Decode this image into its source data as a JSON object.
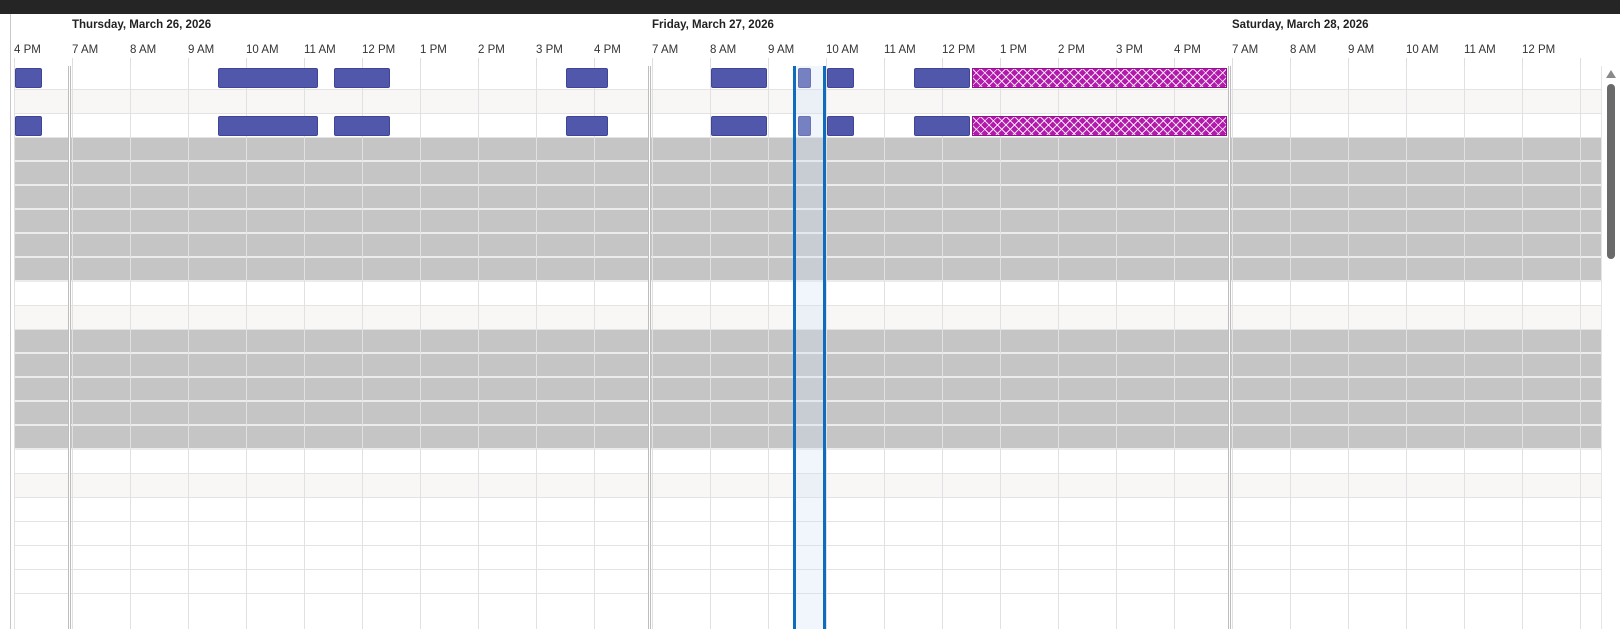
{
  "scheduler": {
    "days": [
      {
        "label": "Thursday, March 26, 2026"
      },
      {
        "label": "Friday, March 27, 2026"
      },
      {
        "label": "Saturday, March 28, 2026"
      }
    ],
    "hour_labels": [
      [
        "4 PM"
      ],
      [
        "7 AM",
        "8 AM",
        "9 AM",
        "10 AM",
        "11 AM",
        "12 PM",
        "1 PM",
        "2 PM",
        "3 PM",
        "4 PM"
      ],
      [
        "7 AM",
        "8 AM",
        "9 AM",
        "10 AM",
        "11 AM",
        "12 PM",
        "1 PM",
        "2 PM",
        "3 PM",
        "4 PM"
      ],
      [
        "7 AM",
        "8 AM",
        "9 AM",
        "10 AM",
        "11 AM",
        "12 PM"
      ]
    ],
    "row_types": [
      "plain",
      "alt",
      "plain",
      "off",
      "off",
      "off",
      "off",
      "off",
      "off",
      "plain",
      "alt",
      "off",
      "off",
      "off",
      "off",
      "off",
      "plain",
      "alt",
      "plain",
      "plain",
      "plain",
      "plain"
    ],
    "bookings": [
      {
        "row": 0,
        "day": "Thursday, March 26, 2026",
        "start": "4:00 PM",
        "end": "4:30 PM",
        "style": "booking"
      },
      {
        "row": 0,
        "day": "Thursday, March 26, 2026",
        "start": "9:30 AM",
        "end": "11:15 AM",
        "style": "booking"
      },
      {
        "row": 0,
        "day": "Thursday, March 26, 2026",
        "start": "11:30 AM",
        "end": "12:30 PM",
        "style": "booking"
      },
      {
        "row": 0,
        "day": "Thursday, March 26, 2026",
        "start": "3:30 PM",
        "end": "4:15 PM",
        "style": "booking"
      },
      {
        "row": 0,
        "day": "Friday, March 27, 2026",
        "start": "8:00 AM",
        "end": "9:00 AM",
        "style": "booking"
      },
      {
        "row": 0,
        "day": "Friday, March 27, 2026",
        "start": "9:30 AM",
        "end": "9:45 AM",
        "style": "booking"
      },
      {
        "row": 0,
        "day": "Friday, March 27, 2026",
        "start": "10:00 AM",
        "end": "10:30 AM",
        "style": "booking"
      },
      {
        "row": 0,
        "day": "Friday, March 27, 2026",
        "start": "11:30 AM",
        "end": "12:30 PM",
        "style": "booking"
      },
      {
        "row": 0,
        "day": "Friday, March 27, 2026",
        "start": "12:30 PM",
        "end": "5:00 PM",
        "style": "hatch"
      },
      {
        "row": 2,
        "day": "Thursday, March 26, 2026",
        "start": "4:00 PM",
        "end": "4:30 PM",
        "style": "booking"
      },
      {
        "row": 2,
        "day": "Thursday, March 26, 2026",
        "start": "9:30 AM",
        "end": "11:15 AM",
        "style": "booking"
      },
      {
        "row": 2,
        "day": "Thursday, March 26, 2026",
        "start": "11:30 AM",
        "end": "12:30 PM",
        "style": "booking"
      },
      {
        "row": 2,
        "day": "Thursday, March 26, 2026",
        "start": "3:30 PM",
        "end": "4:15 PM",
        "style": "booking"
      },
      {
        "row": 2,
        "day": "Friday, March 27, 2026",
        "start": "8:00 AM",
        "end": "9:00 AM",
        "style": "booking"
      },
      {
        "row": 2,
        "day": "Friday, March 27, 2026",
        "start": "9:30 AM",
        "end": "9:45 AM",
        "style": "booking"
      },
      {
        "row": 2,
        "day": "Friday, March 27, 2026",
        "start": "10:00 AM",
        "end": "10:30 AM",
        "style": "booking"
      },
      {
        "row": 2,
        "day": "Friday, March 27, 2026",
        "start": "11:30 AM",
        "end": "12:30 PM",
        "style": "booking"
      },
      {
        "row": 2,
        "day": "Friday, March 27, 2026",
        "start": "12:30 PM",
        "end": "5:00 PM",
        "style": "hatch"
      }
    ],
    "current_time": {
      "day": "Friday, March 27, 2026",
      "start": "9:30 AM",
      "end": "10:00 AM"
    },
    "colors": {
      "booking": "#5158ab",
      "hatch": "#b21aab",
      "current_time": "#0f6cbd",
      "unavailable_row": "#c5c5c5",
      "alt_row": "#f8f7f6"
    }
  }
}
